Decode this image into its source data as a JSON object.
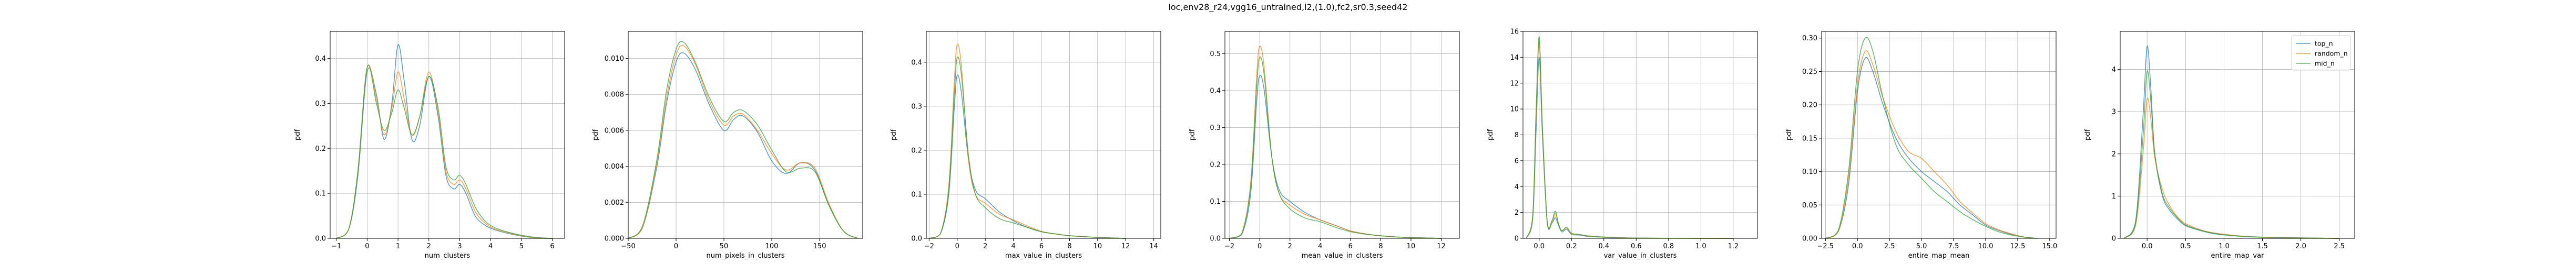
{
  "figure": {
    "suptitle": "loc,env28_r24,vgg16_untrained,l2,(1.0),fc2,sr0.3,seed42"
  },
  "colors": {
    "top_n": "#1f77b4",
    "random_n": "#ff7f0e",
    "mid_n": "#2ca02c",
    "grid": "#b0b0b0",
    "axis": "#000000"
  },
  "legend": {
    "placement": "top-right",
    "entries": [
      "top_n",
      "random_n",
      "mid_n"
    ]
  },
  "chart_data": [
    {
      "type": "line",
      "xlabel": "num_clusters",
      "ylabel": "pdf",
      "grid": true,
      "xlim": [
        -1.2,
        6.4
      ],
      "ylim": [
        0,
        0.46
      ],
      "xticks": [
        -1,
        0,
        1,
        2,
        3,
        4,
        5,
        6
      ],
      "yticks": [
        0.0,
        0.1,
        0.2,
        0.3,
        0.4
      ],
      "series": [
        {
          "name": "top_n",
          "x": [
            -1,
            -0.6,
            -0.3,
            0,
            0.3,
            0.55,
            0.8,
            1,
            1.2,
            1.45,
            1.7,
            2,
            2.3,
            2.55,
            2.8,
            3,
            3.2,
            3.5,
            3.8,
            4.1,
            4.5,
            5,
            5.5,
            6
          ],
          "y": [
            0,
            0.02,
            0.14,
            0.37,
            0.32,
            0.22,
            0.3,
            0.43,
            0.35,
            0.22,
            0.25,
            0.36,
            0.27,
            0.14,
            0.11,
            0.12,
            0.1,
            0.05,
            0.03,
            0.02,
            0.012,
            0.005,
            0.001,
            0
          ]
        },
        {
          "name": "random_n",
          "x": [
            -1,
            -0.6,
            -0.3,
            0,
            0.3,
            0.55,
            0.8,
            1,
            1.2,
            1.45,
            1.7,
            2,
            2.3,
            2.55,
            2.8,
            3,
            3.2,
            3.5,
            3.8,
            4.1,
            4.5,
            5,
            5.5,
            6
          ],
          "y": [
            0,
            0.02,
            0.15,
            0.38,
            0.31,
            0.23,
            0.29,
            0.37,
            0.31,
            0.23,
            0.27,
            0.37,
            0.28,
            0.15,
            0.12,
            0.13,
            0.11,
            0.06,
            0.035,
            0.022,
            0.014,
            0.006,
            0.001,
            0
          ]
        },
        {
          "name": "mid_n",
          "x": [
            -1,
            -0.6,
            -0.3,
            0,
            0.3,
            0.55,
            0.8,
            1,
            1.2,
            1.45,
            1.7,
            2,
            2.3,
            2.55,
            2.8,
            3,
            3.2,
            3.5,
            3.8,
            4.1,
            4.5,
            5,
            5.5,
            6
          ],
          "y": [
            0,
            0.02,
            0.15,
            0.38,
            0.3,
            0.24,
            0.28,
            0.33,
            0.29,
            0.23,
            0.27,
            0.36,
            0.29,
            0.16,
            0.13,
            0.14,
            0.12,
            0.07,
            0.04,
            0.025,
            0.015,
            0.007,
            0.002,
            0
          ]
        }
      ]
    },
    {
      "type": "line",
      "xlabel": "num_pixels_in_clusters",
      "ylabel": "pdf",
      "grid": true,
      "xlim": [
        -50,
        195
      ],
      "ylim": [
        0,
        0.0115
      ],
      "xticks": [
        -50,
        0,
        50,
        100,
        150
      ],
      "yticks": [
        0.0,
        0.002,
        0.004,
        0.006,
        0.008,
        0.01
      ],
      "series": [
        {
          "name": "top_n",
          "x": [
            -50,
            -35,
            -20,
            -10,
            0,
            8,
            20,
            35,
            50,
            60,
            70,
            85,
            100,
            115,
            130,
            145,
            160,
            175,
            190
          ],
          "y": [
            0,
            0.0006,
            0.004,
            0.0075,
            0.0098,
            0.0103,
            0.0094,
            0.0074,
            0.006,
            0.0066,
            0.0068,
            0.0059,
            0.0043,
            0.0036,
            0.0042,
            0.0038,
            0.0018,
            0.0004,
            0
          ]
        },
        {
          "name": "random_n",
          "x": [
            -50,
            -35,
            -20,
            -10,
            0,
            8,
            20,
            35,
            50,
            60,
            70,
            85,
            100,
            115,
            130,
            145,
            160,
            175,
            190
          ],
          "y": [
            0,
            0.0006,
            0.0042,
            0.0078,
            0.0102,
            0.0107,
            0.0097,
            0.0076,
            0.0063,
            0.0068,
            0.0069,
            0.006,
            0.0047,
            0.0038,
            0.0042,
            0.0039,
            0.0019,
            0.0004,
            0
          ]
        },
        {
          "name": "mid_n",
          "x": [
            -50,
            -35,
            -20,
            -10,
            0,
            8,
            20,
            35,
            50,
            60,
            70,
            85,
            100,
            115,
            130,
            145,
            160,
            175,
            190
          ],
          "y": [
            0,
            0.0007,
            0.0044,
            0.0082,
            0.0105,
            0.0109,
            0.0098,
            0.0078,
            0.0065,
            0.007,
            0.0071,
            0.0063,
            0.0049,
            0.0037,
            0.0039,
            0.0037,
            0.0018,
            0.0004,
            0
          ]
        }
      ]
    },
    {
      "type": "line",
      "xlabel": "max_value_in_clusters",
      "ylabel": "pdf",
      "grid": true,
      "xlim": [
        -2.2,
        14.5
      ],
      "ylim": [
        0,
        0.47
      ],
      "xticks": [
        -2,
        0,
        2,
        4,
        6,
        8,
        10,
        12,
        14
      ],
      "yticks": [
        0.0,
        0.1,
        0.2,
        0.3,
        0.4
      ],
      "series": [
        {
          "name": "top_n",
          "x": [
            -2,
            -1.2,
            -0.6,
            -0.2,
            0,
            0.3,
            0.8,
            1.3,
            2,
            3,
            4,
            5,
            6,
            7,
            8,
            9,
            10,
            11,
            12
          ],
          "y": [
            0,
            0.01,
            0.1,
            0.3,
            0.37,
            0.33,
            0.18,
            0.11,
            0.09,
            0.06,
            0.04,
            0.025,
            0.015,
            0.01,
            0.006,
            0.004,
            0.002,
            0.001,
            0
          ]
        },
        {
          "name": "random_n",
          "x": [
            -2,
            -1.2,
            -0.6,
            -0.2,
            0,
            0.3,
            0.8,
            1.3,
            2,
            3,
            4,
            5,
            6,
            7,
            8,
            9,
            10,
            11,
            12
          ],
          "y": [
            0,
            0.01,
            0.12,
            0.36,
            0.44,
            0.39,
            0.18,
            0.1,
            0.08,
            0.055,
            0.042,
            0.028,
            0.016,
            0.01,
            0.006,
            0.004,
            0.002,
            0.001,
            0
          ]
        },
        {
          "name": "mid_n",
          "x": [
            -2,
            -1.2,
            -0.6,
            -0.2,
            0,
            0.3,
            0.8,
            1.3,
            2,
            3,
            4,
            5,
            6,
            7,
            8,
            9,
            10,
            11,
            12
          ],
          "y": [
            0,
            0.01,
            0.11,
            0.33,
            0.41,
            0.37,
            0.19,
            0.1,
            0.07,
            0.045,
            0.035,
            0.025,
            0.015,
            0.01,
            0.006,
            0.004,
            0.002,
            0.001,
            0
          ]
        }
      ]
    },
    {
      "type": "line",
      "xlabel": "mean_value_in_clusters",
      "ylabel": "pdf",
      "grid": true,
      "xlim": [
        -2.3,
        13.2
      ],
      "ylim": [
        0,
        0.56
      ],
      "xticks": [
        -2,
        0,
        2,
        4,
        6,
        8,
        10,
        12
      ],
      "yticks": [
        0.0,
        0.1,
        0.2,
        0.3,
        0.4,
        0.5
      ],
      "series": [
        {
          "name": "top_n",
          "x": [
            -2,
            -1.2,
            -0.6,
            -0.2,
            0,
            0.3,
            0.8,
            1.3,
            2,
            3,
            4,
            5,
            6,
            7,
            8,
            9,
            10,
            11,
            12
          ],
          "y": [
            0,
            0.01,
            0.12,
            0.37,
            0.44,
            0.4,
            0.22,
            0.13,
            0.1,
            0.07,
            0.05,
            0.035,
            0.02,
            0.012,
            0.007,
            0.004,
            0.002,
            0.001,
            0
          ]
        },
        {
          "name": "random_n",
          "x": [
            -2,
            -1.2,
            -0.6,
            -0.2,
            0,
            0.3,
            0.8,
            1.3,
            2,
            3,
            4,
            5,
            6,
            7,
            8,
            9,
            10,
            11,
            12
          ],
          "y": [
            0,
            0.012,
            0.15,
            0.44,
            0.52,
            0.46,
            0.22,
            0.12,
            0.09,
            0.065,
            0.05,
            0.035,
            0.02,
            0.012,
            0.007,
            0.004,
            0.002,
            0.001,
            0
          ]
        },
        {
          "name": "mid_n",
          "x": [
            -2,
            -1.2,
            -0.6,
            -0.2,
            0,
            0.3,
            0.8,
            1.3,
            2,
            3,
            4,
            5,
            6,
            7,
            8,
            9,
            10,
            11,
            12
          ],
          "y": [
            0,
            0.012,
            0.14,
            0.41,
            0.49,
            0.44,
            0.22,
            0.12,
            0.08,
            0.055,
            0.045,
            0.03,
            0.018,
            0.011,
            0.007,
            0.004,
            0.002,
            0.001,
            0
          ]
        }
      ]
    },
    {
      "type": "line",
      "xlabel": "var_value_in_clusters",
      "ylabel": "pdf",
      "grid": true,
      "xlim": [
        -0.1,
        1.35
      ],
      "ylim": [
        0,
        16
      ],
      "xticks": [
        0.0,
        0.2,
        0.4,
        0.6,
        0.8,
        1.0,
        1.2
      ],
      "yticks": [
        0,
        2,
        4,
        6,
        8,
        10,
        12,
        14,
        16
      ],
      "series": [
        {
          "name": "top_n",
          "x": [
            -0.08,
            -0.04,
            -0.02,
            0,
            0.02,
            0.05,
            0.08,
            0.1,
            0.12,
            0.14,
            0.17,
            0.2,
            0.25,
            0.3,
            0.4,
            0.5,
            0.6,
            0.8,
            1.0,
            1.2
          ],
          "y": [
            0,
            1.5,
            8.0,
            14.0,
            8.0,
            1.2,
            1.2,
            1.6,
            1.0,
            0.5,
            0.7,
            0.3,
            0.25,
            0.15,
            0.08,
            0.04,
            0.02,
            0.01,
            0.005,
            0
          ]
        },
        {
          "name": "random_n",
          "x": [
            -0.08,
            -0.04,
            -0.02,
            0,
            0.02,
            0.05,
            0.08,
            0.1,
            0.12,
            0.14,
            0.17,
            0.2,
            0.25,
            0.3,
            0.4,
            0.5,
            0.6,
            0.8,
            1.0,
            1.2
          ],
          "y": [
            0,
            1.7,
            9.0,
            15.2,
            8.5,
            1.3,
            1.3,
            1.9,
            1.1,
            0.6,
            0.8,
            0.35,
            0.3,
            0.18,
            0.1,
            0.05,
            0.025,
            0.012,
            0.005,
            0
          ]
        },
        {
          "name": "mid_n",
          "x": [
            -0.08,
            -0.04,
            -0.02,
            0,
            0.02,
            0.05,
            0.08,
            0.1,
            0.12,
            0.14,
            0.17,
            0.2,
            0.25,
            0.3,
            0.4,
            0.5,
            0.6,
            0.8,
            1.0,
            1.2
          ],
          "y": [
            0,
            1.8,
            9.5,
            15.6,
            8.7,
            1.3,
            1.4,
            2.1,
            1.1,
            0.6,
            0.85,
            0.4,
            0.3,
            0.2,
            0.1,
            0.05,
            0.025,
            0.012,
            0.005,
            0
          ]
        }
      ]
    },
    {
      "type": "line",
      "xlabel": "entire_map_mean",
      "ylabel": "pdf",
      "grid": true,
      "xlim": [
        -2.8,
        15.5
      ],
      "ylim": [
        0,
        0.31
      ],
      "xticks": [
        -2.5,
        0.0,
        2.5,
        5.0,
        7.5,
        10.0,
        12.5,
        15.0
      ],
      "yticks": [
        0.0,
        0.05,
        0.1,
        0.15,
        0.2,
        0.25,
        0.3
      ],
      "series": [
        {
          "name": "top_n",
          "x": [
            -2.5,
            -1.5,
            -0.7,
            0,
            0.6,
            1.2,
            2,
            3,
            4,
            5,
            6,
            7,
            8,
            9,
            10,
            11,
            12,
            13,
            14
          ],
          "y": [
            0,
            0.01,
            0.08,
            0.22,
            0.27,
            0.25,
            0.2,
            0.15,
            0.12,
            0.1,
            0.085,
            0.07,
            0.05,
            0.035,
            0.02,
            0.012,
            0.006,
            0.002,
            0
          ]
        },
        {
          "name": "random_n",
          "x": [
            -2.5,
            -1.5,
            -0.7,
            0,
            0.6,
            1.2,
            2,
            3,
            4,
            5,
            6,
            7,
            8,
            9,
            10,
            11,
            12,
            13,
            14
          ],
          "y": [
            0,
            0.01,
            0.09,
            0.23,
            0.28,
            0.26,
            0.21,
            0.16,
            0.13,
            0.12,
            0.1,
            0.08,
            0.055,
            0.038,
            0.022,
            0.013,
            0.007,
            0.002,
            0
          ]
        },
        {
          "name": "mid_n",
          "x": [
            -2.5,
            -1.5,
            -0.7,
            0,
            0.6,
            1.2,
            2,
            3,
            4,
            5,
            6,
            7,
            8,
            9,
            10,
            11,
            12,
            13,
            14
          ],
          "y": [
            0,
            0.012,
            0.1,
            0.25,
            0.3,
            0.28,
            0.21,
            0.14,
            0.11,
            0.09,
            0.07,
            0.055,
            0.04,
            0.028,
            0.018,
            0.01,
            0.005,
            0.002,
            0
          ]
        }
      ]
    },
    {
      "type": "line",
      "xlabel": "entire_map_var",
      "ylabel": "pdf",
      "grid": true,
      "xlim": [
        -0.35,
        2.7
      ],
      "ylim": [
        0,
        4.9
      ],
      "xticks": [
        0.0,
        0.5,
        1.0,
        1.5,
        2.0,
        2.5
      ],
      "yticks": [
        0,
        1,
        2,
        3,
        4
      ],
      "series": [
        {
          "name": "top_n",
          "x": [
            -0.3,
            -0.15,
            -0.05,
            0,
            0.05,
            0.1,
            0.2,
            0.3,
            0.4,
            0.5,
            0.7,
            0.9,
            1.2,
            1.5,
            2.0,
            2.5
          ],
          "y": [
            0,
            0.4,
            3.0,
            4.55,
            3.5,
            2.0,
            1.0,
            0.65,
            0.45,
            0.3,
            0.18,
            0.1,
            0.05,
            0.025,
            0.01,
            0
          ]
        },
        {
          "name": "random_n",
          "x": [
            -0.3,
            -0.15,
            -0.05,
            0,
            0.05,
            0.1,
            0.2,
            0.3,
            0.4,
            0.5,
            0.7,
            0.9,
            1.2,
            1.5,
            2.0,
            2.5
          ],
          "y": [
            0,
            0.3,
            2.1,
            3.3,
            2.8,
            1.9,
            1.15,
            0.75,
            0.5,
            0.35,
            0.2,
            0.12,
            0.06,
            0.03,
            0.012,
            0
          ]
        },
        {
          "name": "mid_n",
          "x": [
            -0.3,
            -0.15,
            -0.05,
            0,
            0.05,
            0.1,
            0.2,
            0.3,
            0.4,
            0.5,
            0.7,
            0.9,
            1.2,
            1.5,
            2.0,
            2.5
          ],
          "y": [
            0,
            0.35,
            2.5,
            3.95,
            3.2,
            2.0,
            1.05,
            0.7,
            0.48,
            0.32,
            0.19,
            0.11,
            0.055,
            0.028,
            0.011,
            0
          ]
        }
      ]
    }
  ]
}
